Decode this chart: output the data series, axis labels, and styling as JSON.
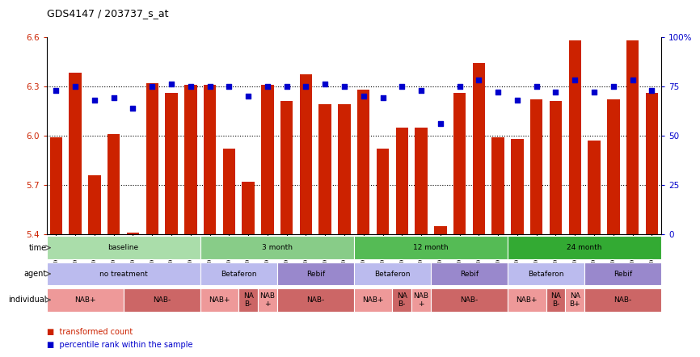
{
  "title": "GDS4147 / 203737_s_at",
  "samples": [
    "GSM641342",
    "GSM641346",
    "GSM641350",
    "GSM641354",
    "GSM641358",
    "GSM641362",
    "GSM641366",
    "GSM641370",
    "GSM641343",
    "GSM641351",
    "GSM641355",
    "GSM641359",
    "GSM641347",
    "GSM641363",
    "GSM641367",
    "GSM641371",
    "GSM641344",
    "GSM641352",
    "GSM641356",
    "GSM641360",
    "GSM641348",
    "GSM641364",
    "GSM641368",
    "GSM641372",
    "GSM641345",
    "GSM641353",
    "GSM641357",
    "GSM641361",
    "GSM641349",
    "GSM641365",
    "GSM641369",
    "GSM641373"
  ],
  "bar_values": [
    5.99,
    6.38,
    5.76,
    6.01,
    5.41,
    6.32,
    6.26,
    6.31,
    6.31,
    5.92,
    5.72,
    6.31,
    6.21,
    6.37,
    6.19,
    6.19,
    6.28,
    5.92,
    6.05,
    6.05,
    5.45,
    6.26,
    6.44,
    5.99,
    5.98,
    6.22,
    6.21,
    6.58,
    5.97,
    6.22,
    6.58,
    6.26
  ],
  "dot_values": [
    73,
    75,
    68,
    69,
    64,
    75,
    76,
    75,
    75,
    75,
    70,
    75,
    75,
    75,
    76,
    75,
    70,
    69,
    75,
    73,
    56,
    75,
    78,
    72,
    68,
    75,
    72,
    78,
    72,
    75,
    78,
    73
  ],
  "ylim": [
    5.4,
    6.6
  ],
  "yticks_left": [
    5.4,
    5.7,
    6.0,
    6.3,
    6.6
  ],
  "yticks_right": [
    0,
    25,
    50,
    75,
    100
  ],
  "bar_color": "#cc2200",
  "dot_color": "#0000cc",
  "time_groups": [
    {
      "label": "baseline",
      "start": 0,
      "end": 7,
      "color": "#aaddaa"
    },
    {
      "label": "3 month",
      "start": 8,
      "end": 15,
      "color": "#88cc88"
    },
    {
      "label": "12 month",
      "start": 16,
      "end": 23,
      "color": "#55bb55"
    },
    {
      "label": "24 month",
      "start": 24,
      "end": 31,
      "color": "#33aa33"
    }
  ],
  "agent_groups": [
    {
      "label": "no treatment",
      "start": 0,
      "end": 7,
      "color": "#bbbbee"
    },
    {
      "label": "Betaferon",
      "start": 8,
      "end": 11,
      "color": "#bbbbee"
    },
    {
      "label": "Rebif",
      "start": 12,
      "end": 15,
      "color": "#9988cc"
    },
    {
      "label": "Betaferon",
      "start": 16,
      "end": 19,
      "color": "#bbbbee"
    },
    {
      "label": "Rebif",
      "start": 20,
      "end": 23,
      "color": "#9988cc"
    },
    {
      "label": "Betaferon",
      "start": 24,
      "end": 27,
      "color": "#bbbbee"
    },
    {
      "label": "Rebif",
      "start": 28,
      "end": 31,
      "color": "#9988cc"
    }
  ],
  "individual_groups": [
    {
      "label": "NAB+",
      "start": 0,
      "end": 3,
      "color": "#ee9999"
    },
    {
      "label": "NAB-",
      "start": 4,
      "end": 7,
      "color": "#cc6666"
    },
    {
      "label": "NAB+",
      "start": 8,
      "end": 9,
      "color": "#ee9999"
    },
    {
      "label": "NA\nB-",
      "start": 10,
      "end": 10,
      "color": "#cc6666"
    },
    {
      "label": "NAB\n+",
      "start": 11,
      "end": 11,
      "color": "#ee9999"
    },
    {
      "label": "NAB-",
      "start": 12,
      "end": 15,
      "color": "#cc6666"
    },
    {
      "label": "NAB+",
      "start": 16,
      "end": 17,
      "color": "#ee9999"
    },
    {
      "label": "NA\nB-",
      "start": 18,
      "end": 18,
      "color": "#cc6666"
    },
    {
      "label": "NAB\n+",
      "start": 19,
      "end": 19,
      "color": "#ee9999"
    },
    {
      "label": "NAB-",
      "start": 20,
      "end": 23,
      "color": "#cc6666"
    },
    {
      "label": "NAB+",
      "start": 24,
      "end": 25,
      "color": "#ee9999"
    },
    {
      "label": "NA\nB-",
      "start": 26,
      "end": 26,
      "color": "#cc6666"
    },
    {
      "label": "NA\nB+",
      "start": 27,
      "end": 27,
      "color": "#ee9999"
    },
    {
      "label": "NAB-",
      "start": 28,
      "end": 31,
      "color": "#cc6666"
    }
  ]
}
